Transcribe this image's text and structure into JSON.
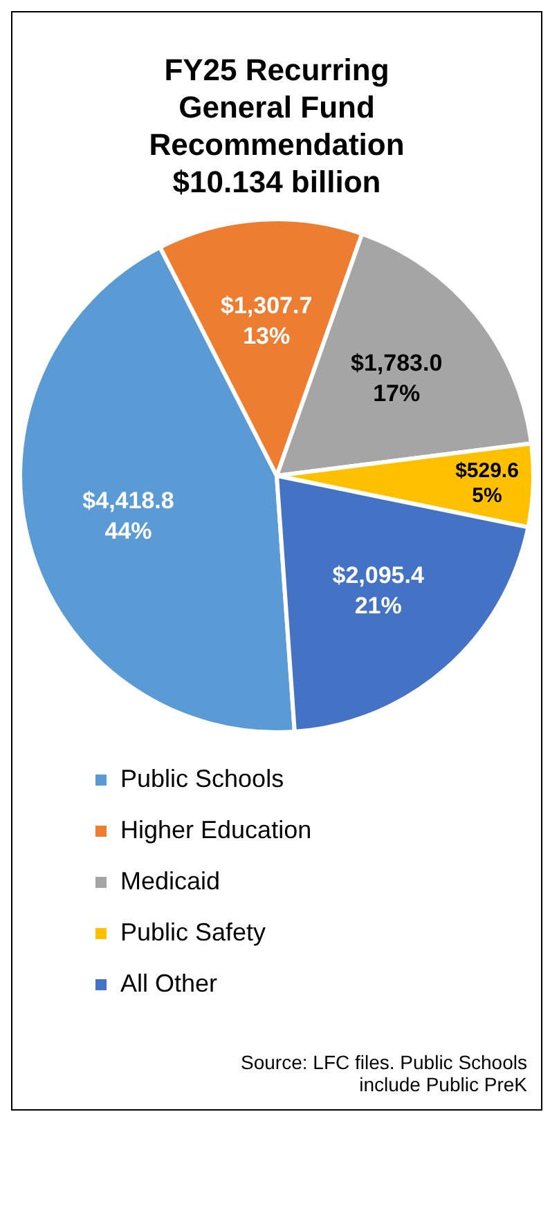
{
  "chart_data": {
    "type": "pie",
    "title": "FY25 Recurring General Fund Recommendation $10.134 billion",
    "categories": [
      "Public Schools",
      "Higher Education",
      "Medicaid",
      "Public Safety",
      "All Other"
    ],
    "values": [
      4418.8,
      1307.7,
      1783.0,
      529.6,
      2095.4
    ],
    "colors": [
      "#5b9bd5",
      "#ed7d31",
      "#a5a5a5",
      "#ffc000",
      "#4472c4"
    ],
    "value_labels": [
      "$4,418.8\n44%",
      "$1,307.7\n13%",
      "$1,783.0\n17%",
      "$529.6\n5%",
      "$2,095.4\n21%"
    ],
    "legend": "bottom",
    "annotations": [
      "Source: LFC files. Public Schools include Public PreK"
    ]
  }
}
